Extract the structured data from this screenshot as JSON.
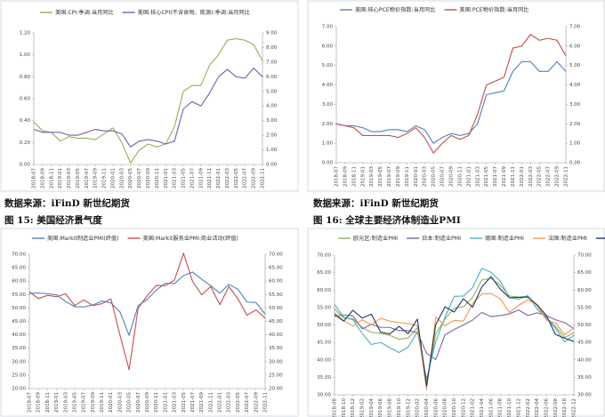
{
  "chart_data": [
    {
      "type": "line",
      "categories": [
        "2018-07",
        "2018-09",
        "2018-11",
        "2019-01",
        "2019-03",
        "2019-05",
        "2019-07",
        "2019-09",
        "2019-11",
        "2020-01",
        "2020-03",
        "2020-05",
        "2020-07",
        "2020-09",
        "2020-11",
        "2021-01",
        "2021-03",
        "2021-05",
        "2021-07",
        "2021-09",
        "2021-11",
        "2022-01",
        "2022-03",
        "2022-05",
        "2022-07",
        "2022-09",
        "2022-11"
      ],
      "series": [
        {
          "name": "美国:CPI:季调:当月同比",
          "color": "#8db355",
          "axis": "y2",
          "values": [
            2.9,
            2.3,
            2.2,
            1.6,
            1.9,
            1.8,
            1.8,
            1.7,
            2.1,
            2.5,
            1.5,
            0.1,
            1.0,
            1.4,
            1.2,
            1.4,
            2.6,
            5.0,
            5.4,
            5.4,
            6.8,
            7.5,
            8.5,
            8.6,
            8.5,
            8.2,
            7.1
          ]
        },
        {
          "name": "美国:核心CPI(不含食物、能源):季调:当月同比",
          "color": "#7b5ea7",
          "axis": "y2",
          "values": [
            2.4,
            2.2,
            2.2,
            2.2,
            2.0,
            2.0,
            2.2,
            2.4,
            2.3,
            2.3,
            2.1,
            1.2,
            1.6,
            1.7,
            1.6,
            1.4,
            1.6,
            3.8,
            4.3,
            4.0,
            4.9,
            6.0,
            6.5,
            6.0,
            5.9,
            6.6,
            6.0
          ]
        }
      ],
      "ylim": [
        0,
        1.2
      ],
      "yticks": [
        {
          "value": 0,
          "label": "0.00"
        },
        {
          "value": 0.2,
          "label": "0.20"
        },
        {
          "value": 0.4,
          "label": "0.40"
        },
        {
          "value": 0.6,
          "label": "0.60"
        },
        {
          "value": 0.8,
          "label": "0.80"
        },
        {
          "value": 1.0,
          "label": "1.00"
        },
        {
          "value": 1.2,
          "label": "1.20"
        }
      ],
      "y2lim": [
        0,
        9
      ],
      "y2ticks": [
        {
          "value": 0,
          "label": "0.00"
        },
        {
          "value": 1,
          "label": "1.00"
        },
        {
          "value": 2,
          "label": "2.00"
        },
        {
          "value": 3,
          "label": "3.00"
        },
        {
          "value": 4,
          "label": "4.00"
        },
        {
          "value": 5,
          "label": "5.00"
        },
        {
          "value": 6,
          "label": "6.00"
        },
        {
          "value": 7,
          "label": "7.00"
        },
        {
          "value": 8,
          "label": "8.00"
        },
        {
          "value": 9,
          "label": "9.00"
        }
      ],
      "legend": "top-left"
    },
    {
      "type": "line",
      "categories": [
        "2018-07",
        "2018-09",
        "2018-11",
        "2019-01",
        "2019-03",
        "2019-05",
        "2019-07",
        "2019-09",
        "2019-11",
        "2020-01",
        "2020-03",
        "2020-05",
        "2020-07",
        "2020-09",
        "2020-11",
        "2021-01",
        "2021-03",
        "2021-05",
        "2021-07",
        "2021-09",
        "2021-11",
        "2022-01",
        "2022-03",
        "2022-05",
        "2022-07",
        "2022-09",
        "2022-11"
      ],
      "series": [
        {
          "name": "美国:核心PCE物价指数:当月同比",
          "color": "#4f81bd",
          "values": [
            2.0,
            1.9,
            1.9,
            1.8,
            1.6,
            1.6,
            1.7,
            1.7,
            1.6,
            1.9,
            1.7,
            1.0,
            1.3,
            1.5,
            1.4,
            1.5,
            2.0,
            3.5,
            3.6,
            3.7,
            4.7,
            5.2,
            5.2,
            4.7,
            4.7,
            5.2,
            4.7
          ]
        },
        {
          "name": "美国:PCE物价指数:当月同比",
          "color": "#c0504d",
          "values": [
            2.0,
            1.9,
            1.8,
            1.4,
            1.4,
            1.4,
            1.4,
            1.3,
            1.5,
            1.8,
            1.3,
            0.5,
            1.0,
            1.4,
            1.2,
            1.4,
            2.5,
            4.0,
            4.2,
            4.4,
            5.9,
            6.0,
            6.6,
            6.3,
            6.4,
            6.3,
            5.5
          ]
        }
      ],
      "ylim": [
        0,
        7
      ],
      "yticks": [
        {
          "value": 0,
          "label": "0.00"
        },
        {
          "value": 1,
          "label": "1.00"
        },
        {
          "value": 2,
          "label": "2.00"
        },
        {
          "value": 3,
          "label": "3.00"
        },
        {
          "value": 4,
          "label": "4.00"
        },
        {
          "value": 5,
          "label": "5.00"
        },
        {
          "value": 6,
          "label": "6.00"
        },
        {
          "value": 7,
          "label": "7.00"
        }
      ],
      "y2lim": [
        0,
        7
      ],
      "y2ticks": [
        {
          "value": 0,
          "label": "0.00"
        },
        {
          "value": 1,
          "label": "1.00"
        },
        {
          "value": 2,
          "label": "2.00"
        },
        {
          "value": 3,
          "label": "3.00"
        },
        {
          "value": 4,
          "label": "4.00"
        },
        {
          "value": 5,
          "label": "5.00"
        },
        {
          "value": 6,
          "label": "6.00"
        },
        {
          "value": 7,
          "label": "7.00"
        }
      ],
      "legend": "top-left"
    },
    {
      "type": "line",
      "categories": [
        "2018-07",
        "2018-09",
        "2018-11",
        "2019-01",
        "2019-03",
        "2019-05",
        "2019-07",
        "2019-09",
        "2019-11",
        "2020-01",
        "2020-03",
        "2020-05",
        "2020-07",
        "2020-09",
        "2020-11",
        "2021-01",
        "2021-03",
        "2021-05",
        "2021-07",
        "2021-09",
        "2021-11",
        "2022-01",
        "2022-03",
        "2022-05",
        "2022-07",
        "2022-09",
        "2022-11"
      ],
      "series": [
        {
          "name": "美国:Markit制造业PMI(终值)",
          "color": "#4f81bd",
          "values": [
            55.4,
            55.6,
            55.3,
            54.9,
            52.4,
            50.5,
            50.4,
            51.1,
            52.6,
            51.9,
            48.5,
            39.8,
            50.9,
            53.2,
            56.7,
            59.2,
            59.1,
            62.1,
            63.4,
            60.7,
            58.3,
            55.5,
            58.8,
            57.0,
            52.2,
            52.0,
            47.7
          ]
        },
        {
          "name": "美国:Markit服务业PMI:商业活动(终值)",
          "color": "#c0504d",
          "values": [
            56.0,
            53.5,
            54.7,
            54.2,
            55.3,
            50.9,
            53.0,
            50.9,
            51.6,
            53.4,
            39.8,
            27.0,
            50.0,
            54.6,
            58.4,
            58.3,
            60.4,
            70.4,
            59.9,
            54.9,
            58.0,
            51.2,
            58.0,
            53.4,
            47.3,
            49.3,
            46.2
          ]
        }
      ],
      "ylim": [
        20,
        70
      ],
      "yticks": [
        {
          "value": 20,
          "label": "20.00"
        },
        {
          "value": 25,
          "label": "25.00"
        },
        {
          "value": 30,
          "label": "30.00"
        },
        {
          "value": 35,
          "label": "35.00"
        },
        {
          "value": 40,
          "label": "40.00"
        },
        {
          "value": 45,
          "label": "45.00"
        },
        {
          "value": 50,
          "label": "50.00"
        },
        {
          "value": 55,
          "label": "55.00"
        },
        {
          "value": 60,
          "label": "60.00"
        },
        {
          "value": 65,
          "label": "65.00"
        },
        {
          "value": 70,
          "label": "70.00"
        }
      ],
      "y2lim": [
        20,
        70
      ],
      "y2ticks": [
        {
          "value": 20,
          "label": "20.00"
        },
        {
          "value": 25,
          "label": "25.00"
        },
        {
          "value": 30,
          "label": "30.00"
        },
        {
          "value": 35,
          "label": "35.00"
        },
        {
          "value": 40,
          "label": "40.00"
        },
        {
          "value": 45,
          "label": "45.00"
        },
        {
          "value": 50,
          "label": "50.00"
        },
        {
          "value": 55,
          "label": "55.00"
        },
        {
          "value": 60,
          "label": "60.00"
        },
        {
          "value": 65,
          "label": "65.00"
        },
        {
          "value": 70,
          "label": "70.00"
        }
      ],
      "legend": "top-left"
    },
    {
      "type": "line",
      "categories": [
        "2018-08",
        "2018-10",
        "2018-12",
        "2019-02",
        "2019-04",
        "2019-06",
        "2019-08",
        "2019-10",
        "2019-12",
        "2020-02",
        "2020-04",
        "2020-06",
        "2020-08",
        "2020-10",
        "2020-12",
        "2021-02",
        "2021-04",
        "2021-06",
        "2021-08",
        "2021-10",
        "2021-12",
        "2022-02",
        "2022-04",
        "2022-06",
        "2022-08",
        "2022-10",
        "2022-12"
      ],
      "series": [
        {
          "name": "欧元区:制造业PMI",
          "color": "#8db355",
          "values": [
            54.6,
            52.0,
            51.8,
            49.3,
            47.9,
            47.6,
            47.0,
            45.9,
            46.3,
            49.2,
            33.4,
            47.4,
            51.7,
            54.8,
            55.2,
            57.9,
            62.9,
            63.4,
            61.4,
            58.3,
            58.0,
            58.2,
            55.5,
            52.1,
            49.6,
            46.4,
            47.8
          ]
        },
        {
          "name": "日本:制造业PMI",
          "color": "#8064a2",
          "values": [
            52.5,
            52.9,
            52.6,
            48.9,
            50.2,
            49.3,
            49.3,
            48.4,
            48.4,
            47.8,
            41.9,
            40.1,
            47.2,
            48.7,
            50.0,
            51.4,
            53.6,
            52.4,
            52.7,
            53.2,
            54.3,
            52.7,
            53.5,
            52.7,
            51.5,
            50.7,
            48.9
          ]
        },
        {
          "name": "德国:制造业PMI",
          "color": "#4bacc6",
          "values": [
            55.9,
            52.2,
            51.5,
            47.6,
            44.4,
            45.0,
            43.5,
            42.1,
            43.7,
            48.0,
            34.5,
            45.2,
            52.2,
            58.2,
            58.3,
            60.7,
            66.2,
            65.1,
            62.6,
            57.8,
            57.4,
            58.4,
            54.6,
            52.0,
            49.1,
            45.1,
            47.1
          ]
        },
        {
          "name": "法国:制造业PMI",
          "color": "#f79646",
          "values": [
            53.5,
            51.2,
            49.7,
            51.5,
            50.0,
            51.9,
            51.1,
            50.7,
            50.4,
            49.8,
            31.5,
            52.3,
            49.8,
            51.3,
            51.1,
            56.1,
            58.9,
            59.0,
            57.5,
            53.6,
            55.6,
            57.2,
            55.7,
            51.4,
            50.6,
            47.2,
            49.2
          ]
        },
        {
          "name": "英国:制造业PMI",
          "color": "#1f3864",
          "values": [
            53.0,
            51.1,
            54.2,
            52.0,
            53.1,
            48.0,
            47.4,
            49.6,
            47.5,
            51.7,
            32.6,
            50.1,
            55.2,
            53.7,
            57.5,
            55.1,
            60.9,
            63.9,
            60.3,
            57.8,
            57.9,
            58.0,
            55.8,
            52.8,
            47.3,
            46.2,
            45.3
          ]
        }
      ],
      "ylim": [
        30,
        70
      ],
      "yticks": [
        {
          "value": 30,
          "label": "30.00"
        },
        {
          "value": 35,
          "label": "35.00"
        },
        {
          "value": 40,
          "label": "40.00"
        },
        {
          "value": 45,
          "label": "45.00"
        },
        {
          "value": 50,
          "label": "50.00"
        },
        {
          "value": 55,
          "label": "55.00"
        },
        {
          "value": 60,
          "label": "60.00"
        },
        {
          "value": 65,
          "label": "65.00"
        },
        {
          "value": 70,
          "label": "70.00"
        }
      ],
      "y2lim": [
        30,
        70
      ],
      "y2ticks": [
        {
          "value": 30,
          "label": "30.00"
        },
        {
          "value": 35,
          "label": "35.00"
        },
        {
          "value": 40,
          "label": "40.00"
        },
        {
          "value": 45,
          "label": "45.00"
        },
        {
          "value": 50,
          "label": "50.00"
        },
        {
          "value": 55,
          "label": "55.00"
        },
        {
          "value": 60,
          "label": "60.00"
        },
        {
          "value": 65,
          "label": "65.00"
        },
        {
          "value": 70,
          "label": "70.00"
        }
      ],
      "legend": "top"
    }
  ],
  "source_notes": [
    "数据来源：iFinD 新世纪期货",
    "数据来源：iFinD 新世纪期货"
  ],
  "figure_titles": [
    "图 15:  美国经济景气度",
    "图 16:  全球主要经济体制造业PMI"
  ]
}
